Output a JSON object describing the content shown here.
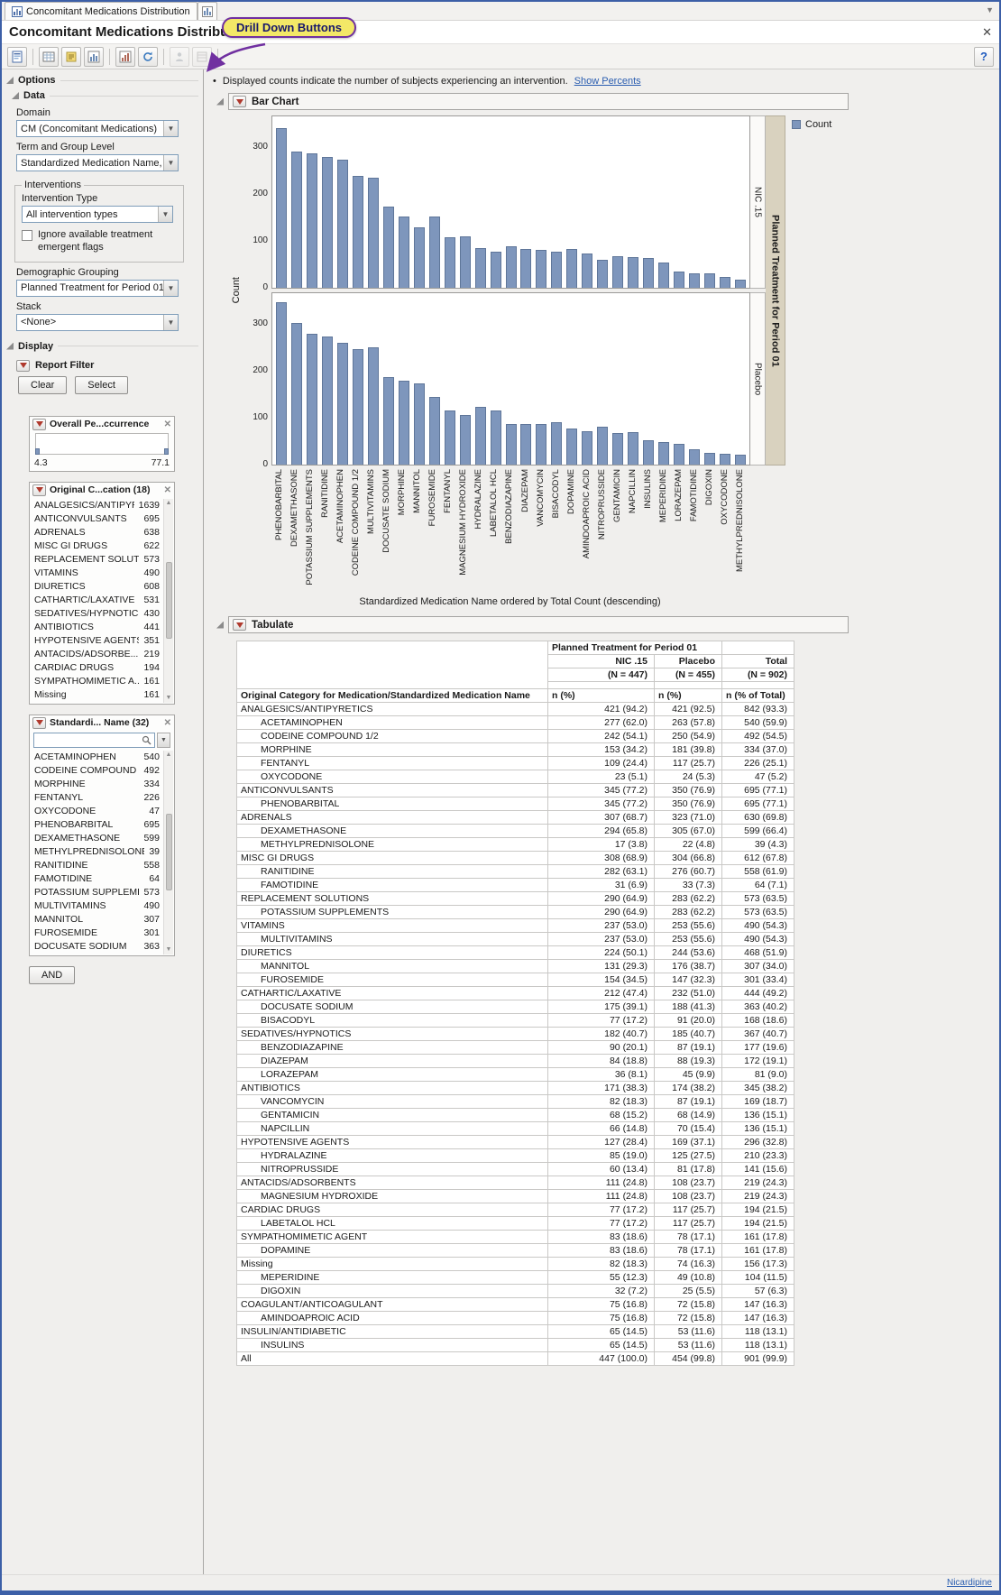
{
  "window": {
    "tab_title": "Concomitant Medications Distribution",
    "page_title": "Concomitant Medications Distribution",
    "close_label": "✕",
    "help_label": "?",
    "status_link": "Nicardipine"
  },
  "callout": {
    "text": "Drill Down Buttons"
  },
  "toolbar": {
    "icons": [
      "report-icon",
      "data-table-icon",
      "journal-icon",
      "graph-icon",
      "script-icon",
      "refresh-icon",
      "drill-subjects-icon",
      "drill-records-icon",
      "help-icon"
    ],
    "disabled_icons": [
      "drill-subjects-icon",
      "drill-records-icon"
    ]
  },
  "colors": {
    "bar": "#7E96BC",
    "link": "#2A5DB0",
    "callout_bg": "#F3E867",
    "callout_border": "#7030A0",
    "tan_strip": "#D9D2BF"
  },
  "options": {
    "title": "Options",
    "data_section": {
      "title": "Data",
      "domain_label": "Domain",
      "domain_value": "CM (Concomitant Medications)",
      "term_label": "Term and Group Level",
      "term_value": "Standardized Medication Name, g",
      "interventions_title": "Interventions",
      "intervention_type_label": "Intervention Type",
      "intervention_type_value": "All intervention types",
      "ignore_checkbox_label": "Ignore available treatment emergent flags",
      "demographic_label": "Demographic Grouping",
      "demographic_value": "Planned Treatment for Period 01",
      "stack_label": "Stack",
      "stack_value": "<None>"
    },
    "display_section": {
      "title": "Display",
      "report_filter_title": "Report Filter",
      "clear_label": "Clear",
      "select_label": "Select",
      "and_label": "AND",
      "overall_filter": {
        "title": "Overall Pe...ccurrence",
        "min": "4.3",
        "max": "77.1"
      },
      "category_filter": {
        "title": "Original C...cation (18)",
        "items": [
          {
            "label": "ANALGESICS/ANTIPYR...",
            "count": 1639
          },
          {
            "label": "ANTICONVULSANTS",
            "count": 695
          },
          {
            "label": "ADRENALS",
            "count": 638
          },
          {
            "label": "MISC GI DRUGS",
            "count": 622
          },
          {
            "label": "REPLACEMENT SOLUTI...",
            "count": 573
          },
          {
            "label": "VITAMINS",
            "count": 490
          },
          {
            "label": "DIURETICS",
            "count": 608
          },
          {
            "label": "CATHARTIC/LAXATIVE",
            "count": 531
          },
          {
            "label": "SEDATIVES/HYPNOTICS",
            "count": 430
          },
          {
            "label": "ANTIBIOTICS",
            "count": 441
          },
          {
            "label": "HYPOTENSIVE AGENTS",
            "count": 351
          },
          {
            "label": "ANTACIDS/ADSORBE...",
            "count": 219
          },
          {
            "label": "CARDIAC DRUGS",
            "count": 194
          },
          {
            "label": "SYMPATHOMIMETIC A...",
            "count": 161
          },
          {
            "label": "Missing",
            "count": 161
          }
        ]
      },
      "name_filter": {
        "title": "Standardi... Name (32)",
        "items": [
          {
            "label": "ACETAMINOPHEN",
            "count": 540
          },
          {
            "label": "CODEINE COMPOUND ...",
            "count": 492
          },
          {
            "label": "MORPHINE",
            "count": 334
          },
          {
            "label": "FENTANYL",
            "count": 226
          },
          {
            "label": "OXYCODONE",
            "count": 47
          },
          {
            "label": "PHENOBARBITAL",
            "count": 695
          },
          {
            "label": "DEXAMETHASONE",
            "count": 599
          },
          {
            "label": "METHYLPREDNISOLONE",
            "count": 39
          },
          {
            "label": "RANITIDINE",
            "count": 558
          },
          {
            "label": "FAMOTIDINE",
            "count": 64
          },
          {
            "label": "POTASSIUM SUPPLEME...",
            "count": 573
          },
          {
            "label": "MULTIVITAMINS",
            "count": 490
          },
          {
            "label": "MANNITOL",
            "count": 307
          },
          {
            "label": "FUROSEMIDE",
            "count": 301
          },
          {
            "label": "DOCUSATE SODIUM",
            "count": 363
          }
        ]
      }
    }
  },
  "note": {
    "bullet": "•",
    "text": "Displayed counts indicate the number of subjects experiencing an intervention.",
    "link_label": "Show Percents"
  },
  "bar_chart_section": {
    "title": "Bar Chart"
  },
  "chart_data": {
    "type": "bar",
    "title": "Bar Chart",
    "categories": [
      "PHENOBARBITAL",
      "DEXAMETHASONE",
      "POTASSIUM SUPPLEMENTS",
      "RANITIDINE",
      "ACETAMINOPHEN",
      "CODEINE COMPOUND 1/2",
      "MULTIVITAMINS",
      "DOCUSATE SODIUM",
      "MORPHINE",
      "MANNITOL",
      "FUROSEMIDE",
      "FENTANYL",
      "MAGNESIUM HYDROXIDE",
      "HYDRALAZINE",
      "LABETALOL HCL",
      "BENZODIAZAPINE",
      "DIAZEPAM",
      "VANCOMYCIN",
      "BISACODYL",
      "DOPAMINE",
      "AMINDOAPROIC ACID",
      "NITROPRUSSIDE",
      "GENTAMICIN",
      "NAPCILLIN",
      "INSULINS",
      "MEPERIDINE",
      "LORAZEPAM",
      "FAMOTIDINE",
      "DIGOXIN",
      "OXYCODONE",
      "METHYLPREDNISOLONE"
    ],
    "series": [
      {
        "name": "NIC .15",
        "values": [
          345,
          294,
          290,
          282,
          277,
          242,
          237,
          175,
          153,
          131,
          154,
          109,
          111,
          85,
          77,
          90,
          84,
          82,
          77,
          83,
          75,
          60,
          68,
          66,
          65,
          55,
          36,
          31,
          32,
          23,
          17
        ]
      },
      {
        "name": "Placebo",
        "values": [
          350,
          305,
          283,
          276,
          263,
          250,
          253,
          188,
          181,
          176,
          147,
          117,
          108,
          125,
          117,
          87,
          88,
          87,
          91,
          78,
          72,
          81,
          68,
          70,
          53,
          49,
          45,
          33,
          25,
          24,
          22
        ]
      }
    ],
    "ylabel": "Count",
    "xlabel": "Standardized Medication Name ordered by Total Count (descending)",
    "yticks": [
      0,
      100,
      200,
      300
    ],
    "ylim": [
      0,
      370
    ],
    "legend": {
      "label": "Count",
      "color": "#7E96BC",
      "position": "top-right"
    },
    "panel_group_label": "Planned Treatment for Period 01",
    "panel_labels": [
      "NIC .15",
      "Placebo"
    ],
    "grid": false
  },
  "tabulate": {
    "title": "Tabulate",
    "header": {
      "group_label": "Planned Treatment for Period 01",
      "col1": "NIC .15",
      "col2": "Placebo",
      "col3": "Total",
      "n1": "(N = 447)",
      "n2": "(N = 455)",
      "n3": "(N = 902)",
      "name_header": "Original Category for Medication/Standardized Medication Name",
      "stat1": "n (%)",
      "stat2": "n (%)",
      "stat3": "n (% of Total)"
    },
    "rows": [
      {
        "name": "ANALGESICS/ANTIPYRETICS",
        "indent": 0,
        "v": [
          "421 (94.2)",
          "421 (92.5)",
          "842 (93.3)"
        ]
      },
      {
        "name": "ACETAMINOPHEN",
        "indent": 1,
        "v": [
          "277 (62.0)",
          "263 (57.8)",
          "540 (59.9)"
        ]
      },
      {
        "name": "CODEINE COMPOUND 1/2",
        "indent": 1,
        "v": [
          "242 (54.1)",
          "250 (54.9)",
          "492 (54.5)"
        ]
      },
      {
        "name": "MORPHINE",
        "indent": 1,
        "v": [
          "153 (34.2)",
          "181 (39.8)",
          "334 (37.0)"
        ]
      },
      {
        "name": "FENTANYL",
        "indent": 1,
        "v": [
          "109 (24.4)",
          "117 (25.7)",
          "226 (25.1)"
        ]
      },
      {
        "name": "OXYCODONE",
        "indent": 1,
        "v": [
          "23 (5.1)",
          "24 (5.3)",
          "47 (5.2)"
        ]
      },
      {
        "name": "ANTICONVULSANTS",
        "indent": 0,
        "v": [
          "345 (77.2)",
          "350 (76.9)",
          "695 (77.1)"
        ]
      },
      {
        "name": "PHENOBARBITAL",
        "indent": 1,
        "v": [
          "345 (77.2)",
          "350 (76.9)",
          "695 (77.1)"
        ]
      },
      {
        "name": "ADRENALS",
        "indent": 0,
        "v": [
          "307 (68.7)",
          "323 (71.0)",
          "630 (69.8)"
        ]
      },
      {
        "name": "DEXAMETHASONE",
        "indent": 1,
        "v": [
          "294 (65.8)",
          "305 (67.0)",
          "599 (66.4)"
        ]
      },
      {
        "name": "METHYLPREDNISOLONE",
        "indent": 1,
        "v": [
          "17 (3.8)",
          "22 (4.8)",
          "39 (4.3)"
        ]
      },
      {
        "name": "MISC GI DRUGS",
        "indent": 0,
        "v": [
          "308 (68.9)",
          "304 (66.8)",
          "612 (67.8)"
        ]
      },
      {
        "name": "RANITIDINE",
        "indent": 1,
        "v": [
          "282 (63.1)",
          "276 (60.7)",
          "558 (61.9)"
        ]
      },
      {
        "name": "FAMOTIDINE",
        "indent": 1,
        "v": [
          "31 (6.9)",
          "33 (7.3)",
          "64 (7.1)"
        ]
      },
      {
        "name": "REPLACEMENT SOLUTIONS",
        "indent": 0,
        "v": [
          "290 (64.9)",
          "283 (62.2)",
          "573 (63.5)"
        ]
      },
      {
        "name": "POTASSIUM SUPPLEMENTS",
        "indent": 1,
        "v": [
          "290 (64.9)",
          "283 (62.2)",
          "573 (63.5)"
        ]
      },
      {
        "name": "VITAMINS",
        "indent": 0,
        "v": [
          "237 (53.0)",
          "253 (55.6)",
          "490 (54.3)"
        ]
      },
      {
        "name": "MULTIVITAMINS",
        "indent": 1,
        "v": [
          "237 (53.0)",
          "253 (55.6)",
          "490 (54.3)"
        ]
      },
      {
        "name": "DIURETICS",
        "indent": 0,
        "v": [
          "224 (50.1)",
          "244 (53.6)",
          "468 (51.9)"
        ]
      },
      {
        "name": "MANNITOL",
        "indent": 1,
        "v": [
          "131 (29.3)",
          "176 (38.7)",
          "307 (34.0)"
        ]
      },
      {
        "name": "FUROSEMIDE",
        "indent": 1,
        "v": [
          "154 (34.5)",
          "147 (32.3)",
          "301 (33.4)"
        ]
      },
      {
        "name": "CATHARTIC/LAXATIVE",
        "indent": 0,
        "v": [
          "212 (47.4)",
          "232 (51.0)",
          "444 (49.2)"
        ]
      },
      {
        "name": "DOCUSATE SODIUM",
        "indent": 1,
        "v": [
          "175 (39.1)",
          "188 (41.3)",
          "363 (40.2)"
        ]
      },
      {
        "name": "BISACODYL",
        "indent": 1,
        "v": [
          "77 (17.2)",
          "91 (20.0)",
          "168 (18.6)"
        ]
      },
      {
        "name": "SEDATIVES/HYPNOTICS",
        "indent": 0,
        "v": [
          "182 (40.7)",
          "185 (40.7)",
          "367 (40.7)"
        ]
      },
      {
        "name": "BENZODIAZAPINE",
        "indent": 1,
        "v": [
          "90 (20.1)",
          "87 (19.1)",
          "177 (19.6)"
        ]
      },
      {
        "name": "DIAZEPAM",
        "indent": 1,
        "v": [
          "84 (18.8)",
          "88 (19.3)",
          "172 (19.1)"
        ]
      },
      {
        "name": "LORAZEPAM",
        "indent": 1,
        "v": [
          "36 (8.1)",
          "45 (9.9)",
          "81 (9.0)"
        ]
      },
      {
        "name": "ANTIBIOTICS",
        "indent": 0,
        "v": [
          "171 (38.3)",
          "174 (38.2)",
          "345 (38.2)"
        ]
      },
      {
        "name": "VANCOMYCIN",
        "indent": 1,
        "v": [
          "82 (18.3)",
          "87 (19.1)",
          "169 (18.7)"
        ]
      },
      {
        "name": "GENTAMICIN",
        "indent": 1,
        "v": [
          "68 (15.2)",
          "68 (14.9)",
          "136 (15.1)"
        ]
      },
      {
        "name": "NAPCILLIN",
        "indent": 1,
        "v": [
          "66 (14.8)",
          "70 (15.4)",
          "136 (15.1)"
        ]
      },
      {
        "name": "HYPOTENSIVE AGENTS",
        "indent": 0,
        "v": [
          "127 (28.4)",
          "169 (37.1)",
          "296 (32.8)"
        ]
      },
      {
        "name": "HYDRALAZINE",
        "indent": 1,
        "v": [
          "85 (19.0)",
          "125 (27.5)",
          "210 (23.3)"
        ]
      },
      {
        "name": "NITROPRUSSIDE",
        "indent": 1,
        "v": [
          "60 (13.4)",
          "81 (17.8)",
          "141 (15.6)"
        ]
      },
      {
        "name": "ANTACIDS/ADSORBENTS",
        "indent": 0,
        "v": [
          "111 (24.8)",
          "108 (23.7)",
          "219 (24.3)"
        ]
      },
      {
        "name": "MAGNESIUM HYDROXIDE",
        "indent": 1,
        "v": [
          "111 (24.8)",
          "108 (23.7)",
          "219 (24.3)"
        ]
      },
      {
        "name": "CARDIAC DRUGS",
        "indent": 0,
        "v": [
          "77 (17.2)",
          "117 (25.7)",
          "194 (21.5)"
        ]
      },
      {
        "name": "LABETALOL HCL",
        "indent": 1,
        "v": [
          "77 (17.2)",
          "117 (25.7)",
          "194 (21.5)"
        ]
      },
      {
        "name": "SYMPATHOMIMETIC AGENT",
        "indent": 0,
        "v": [
          "83 (18.6)",
          "78 (17.1)",
          "161 (17.8)"
        ]
      },
      {
        "name": "DOPAMINE",
        "indent": 1,
        "v": [
          "83 (18.6)",
          "78 (17.1)",
          "161 (17.8)"
        ]
      },
      {
        "name": "Missing",
        "indent": 0,
        "v": [
          "82 (18.3)",
          "74 (16.3)",
          "156 (17.3)"
        ]
      },
      {
        "name": "MEPERIDINE",
        "indent": 1,
        "v": [
          "55 (12.3)",
          "49 (10.8)",
          "104 (11.5)"
        ]
      },
      {
        "name": "DIGOXIN",
        "indent": 1,
        "v": [
          "32 (7.2)",
          "25 (5.5)",
          "57 (6.3)"
        ]
      },
      {
        "name": "COAGULANT/ANTICOAGULANT",
        "indent": 0,
        "v": [
          "75 (16.8)",
          "72 (15.8)",
          "147 (16.3)"
        ]
      },
      {
        "name": "AMINDOAPROIC ACID",
        "indent": 1,
        "v": [
          "75 (16.8)",
          "72 (15.8)",
          "147 (16.3)"
        ]
      },
      {
        "name": "INSULIN/ANTIDIABETIC",
        "indent": 0,
        "v": [
          "65 (14.5)",
          "53 (11.6)",
          "118 (13.1)"
        ]
      },
      {
        "name": "INSULINS",
        "indent": 1,
        "v": [
          "65 (14.5)",
          "53 (11.6)",
          "118 (13.1)"
        ]
      },
      {
        "name": "All",
        "indent": 0,
        "v": [
          "447 (100.0)",
          "454 (99.8)",
          "901 (99.9)"
        ]
      }
    ]
  }
}
